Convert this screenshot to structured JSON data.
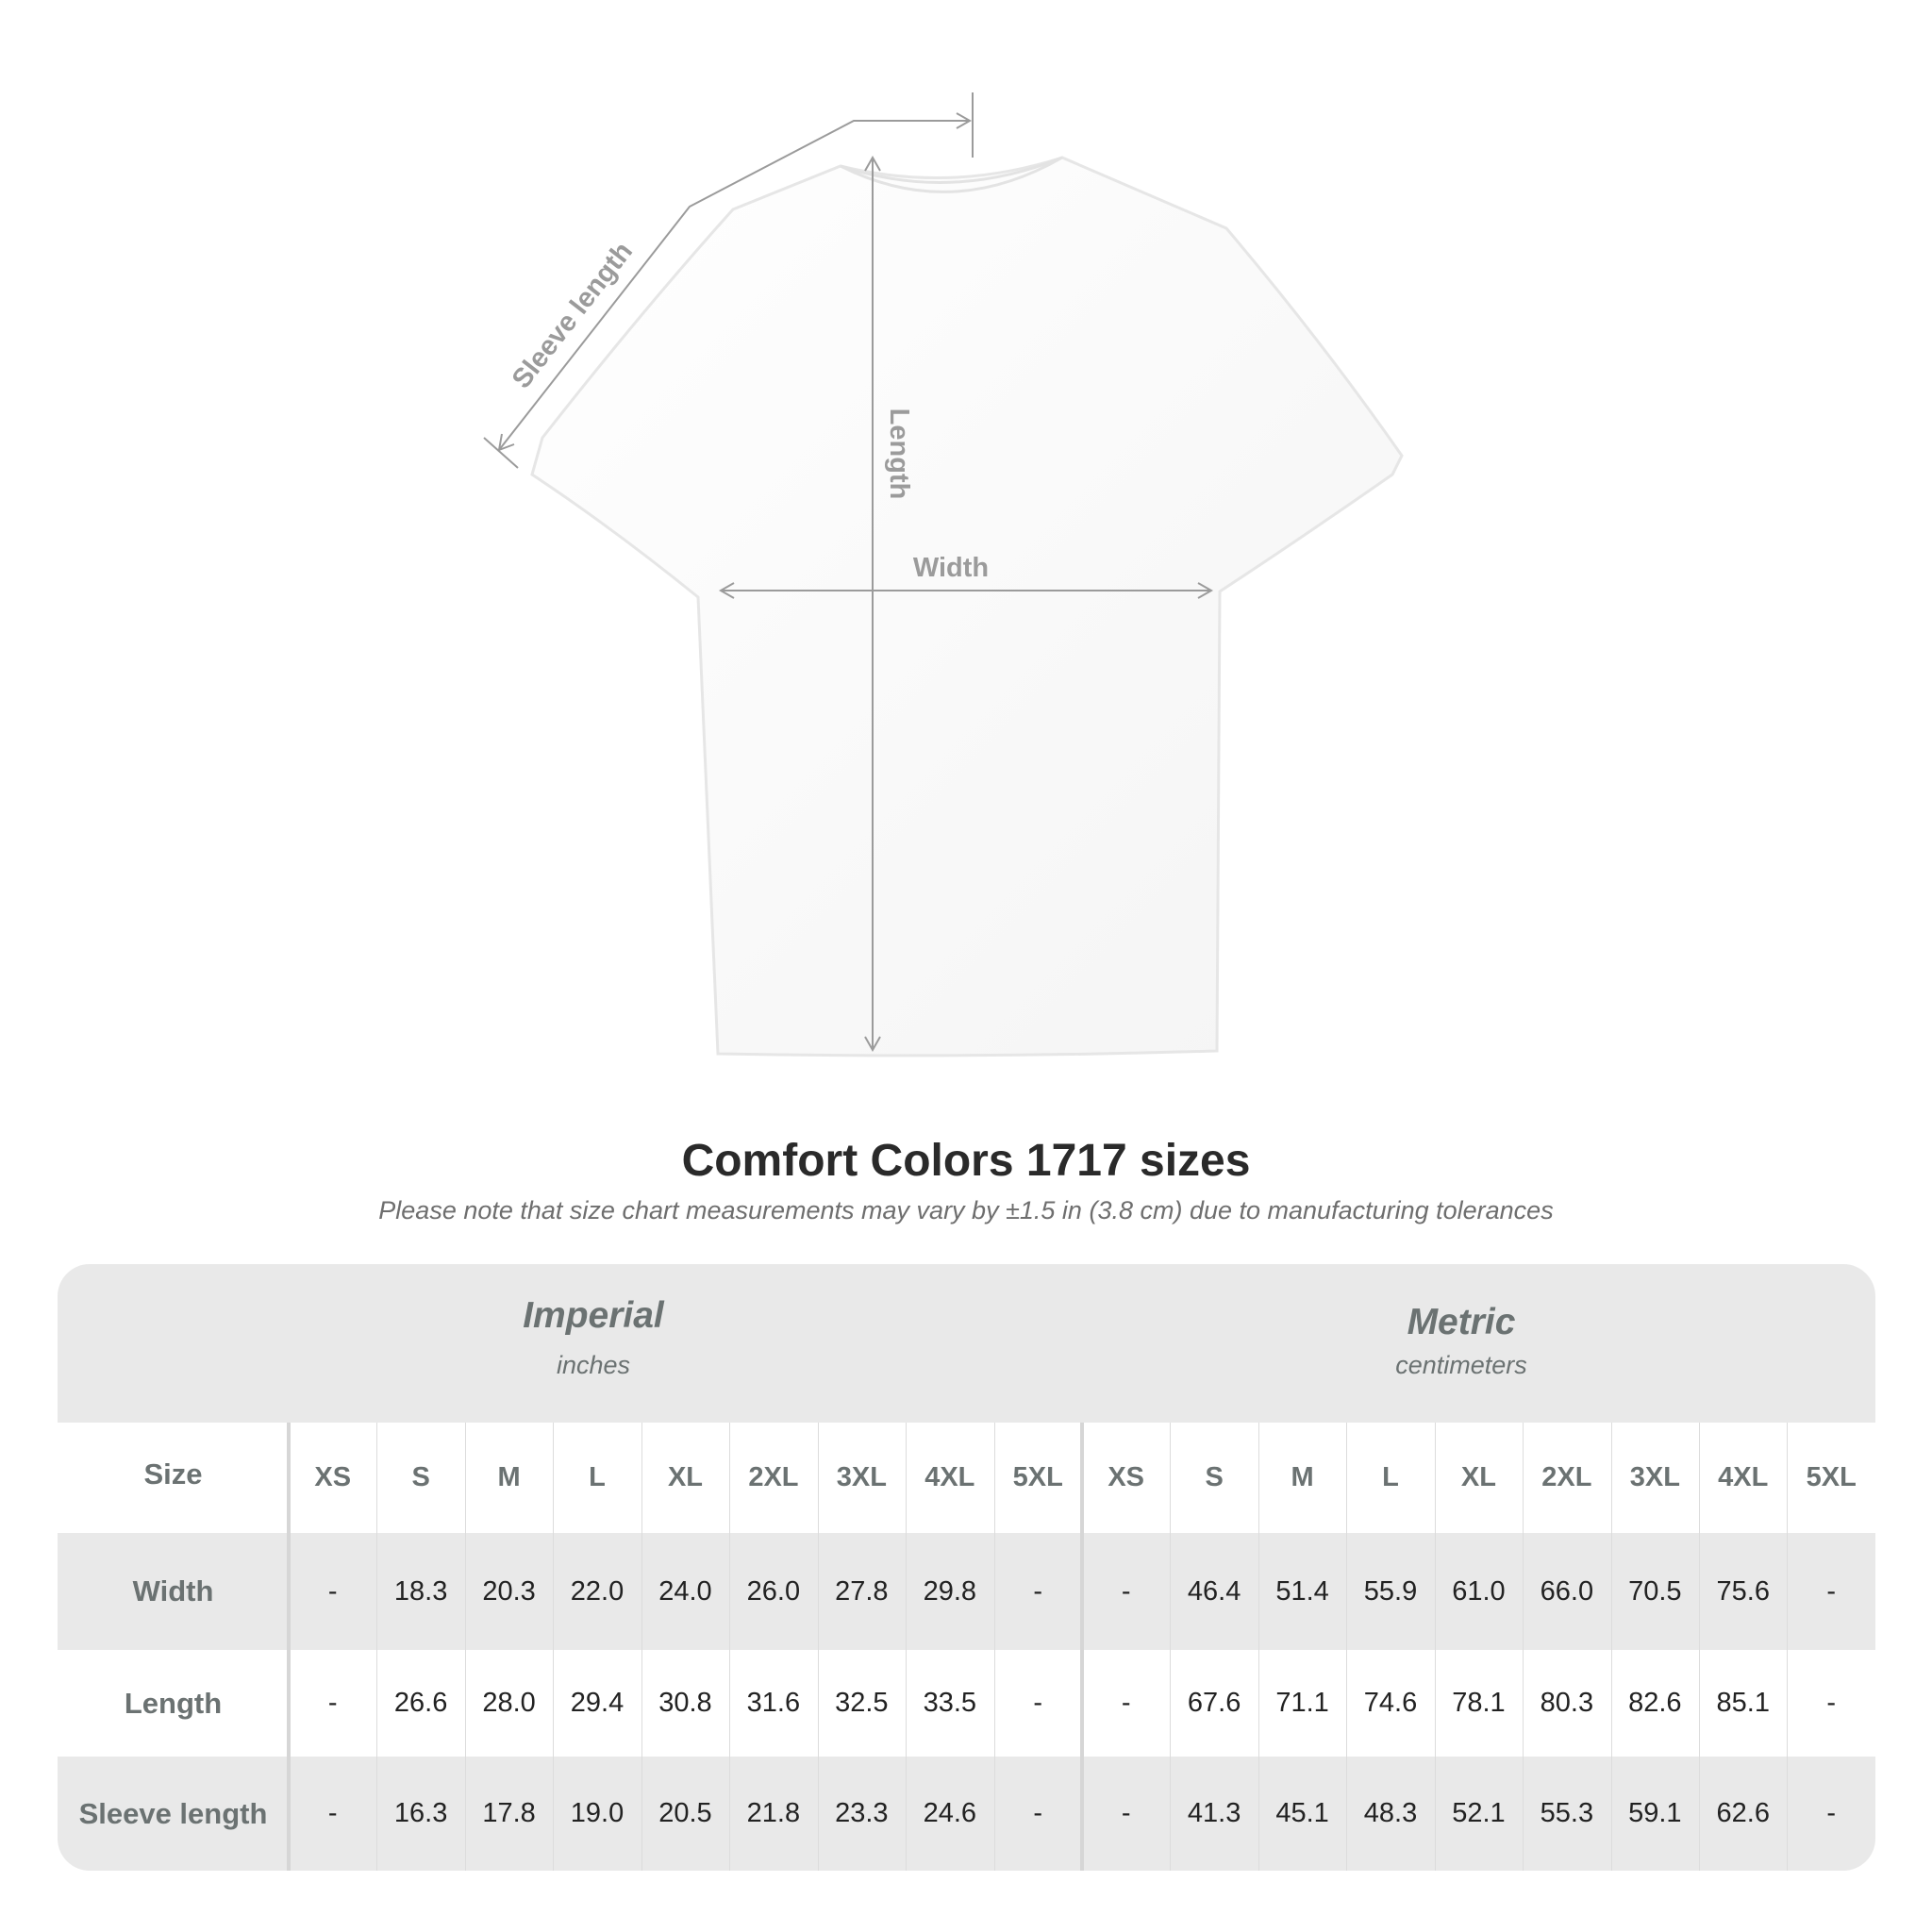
{
  "diagram": {
    "labels": {
      "sleeve": "Sleeve length",
      "length": "Length",
      "width": "Width"
    },
    "line_color": "#9b9b9b",
    "shirt_color": "#ffffff"
  },
  "title": "Comfort Colors 1717 sizes",
  "subtitle": "Please note that size chart measurements may vary by ±1.5 in (3.8 cm) due to manufacturing tolerances",
  "table": {
    "imperial": {
      "title": "Imperial",
      "unit": "inches"
    },
    "metric": {
      "title": "Metric",
      "unit": "centimeters"
    },
    "size_label": "Size",
    "sizes": [
      "XS",
      "S",
      "M",
      "L",
      "XL",
      "2XL",
      "3XL",
      "4XL",
      "5XL"
    ],
    "rows": [
      {
        "label": "Width",
        "imperial": [
          "-",
          "18.3",
          "20.3",
          "22.0",
          "24.0",
          "26.0",
          "27.8",
          "29.8",
          "-"
        ],
        "metric": [
          "-",
          "46.4",
          "51.4",
          "55.9",
          "61.0",
          "66.0",
          "70.5",
          "75.6",
          "-"
        ]
      },
      {
        "label": "Length",
        "imperial": [
          "-",
          "26.6",
          "28.0",
          "29.4",
          "30.8",
          "31.6",
          "32.5",
          "33.5",
          "-"
        ],
        "metric": [
          "-",
          "67.6",
          "71.1",
          "74.6",
          "78.1",
          "80.3",
          "82.6",
          "85.1",
          "-"
        ]
      },
      {
        "label": "Sleeve length",
        "imperial": [
          "-",
          "16.3",
          "17.8",
          "19.0",
          "20.5",
          "21.8",
          "23.3",
          "24.6",
          "-"
        ],
        "metric": [
          "-",
          "41.3",
          "45.1",
          "48.3",
          "52.1",
          "55.3",
          "59.1",
          "62.6",
          "-"
        ]
      }
    ],
    "band_color": "#e9e9e9",
    "header_color": "#6b7272"
  }
}
